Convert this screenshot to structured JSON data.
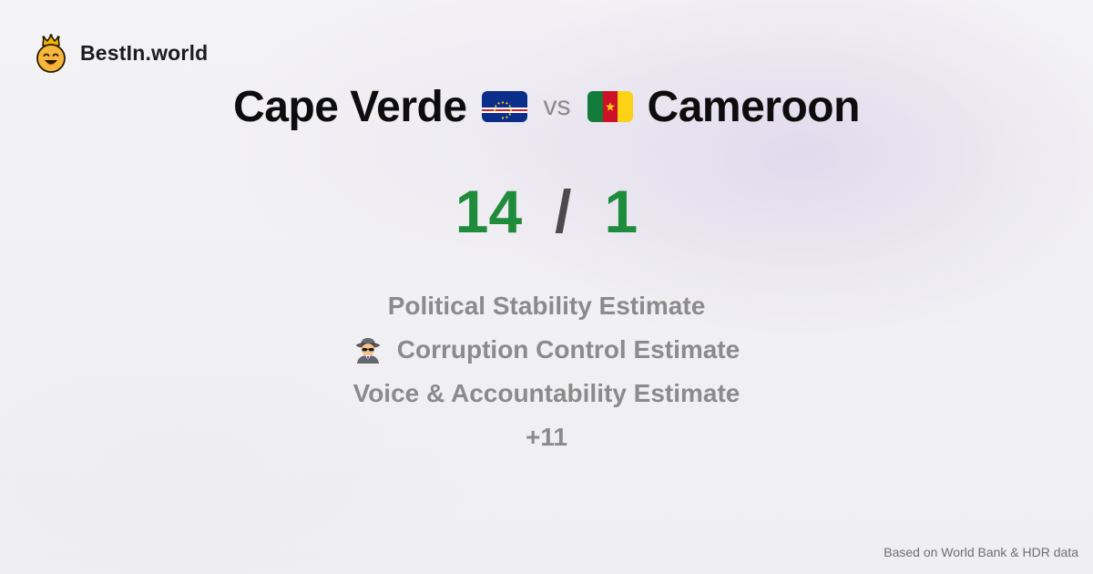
{
  "brand": {
    "name": "BestIn.world",
    "logo_icon": "crowned-smiley-icon"
  },
  "comparison": {
    "left_country": "Cape Verde",
    "left_flag_icon": "cape-verde-flag-icon",
    "vs_label": "vs",
    "right_country": "Cameroon",
    "right_flag_icon": "cameroon-flag-icon"
  },
  "score": {
    "left": "14",
    "separator": "/",
    "right": "1"
  },
  "metrics": [
    {
      "label": "Political Stability Estimate",
      "icon": null
    },
    {
      "label": "Corruption Control Estimate",
      "icon": "spy-icon"
    },
    {
      "label": "Voice & Accountability Estimate",
      "icon": null
    },
    {
      "label": "+11",
      "icon": null
    }
  ],
  "footer": {
    "source": "Based on World Bank & HDR data"
  },
  "colors": {
    "score_green": "#1e8c3a",
    "muted_text": "#8b8b8b",
    "cape_verde_blue": "#0b2e8a",
    "cape_verde_red": "#cf2027",
    "cameroon_green": "#127a3a",
    "cameroon_red": "#ce1126",
    "cameroon_yellow": "#fcd116"
  }
}
